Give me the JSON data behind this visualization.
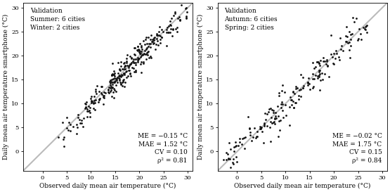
{
  "panel1": {
    "label": "Validation\nSummer: 6 cities\nWinter: 2 cities",
    "stats": "ME = −0.15 °C\nMAE = 1.52 °C\nCV = 0.10\nρ² = 0.81",
    "xlabel": "Observed daily mean air temperature (°C)",
    "ylabel": "Daily mean air temperature smartphone (°C)"
  },
  "panel2": {
    "label": "Validation\nAutumn: 6 cities\nSpring: 2 cities",
    "stats": "ME = −0.02 °C\nMAE = 1.75 °C\nCV = 0.15\nρ² = 0.84",
    "xlabel": "Observed daily mean air temperature (°C)",
    "ylabel": "Daily mean air temperature smartphone (°C)"
  },
  "xlim1": [
    -4,
    31
  ],
  "ylim1": [
    -4,
    31
  ],
  "xlim2": [
    -4,
    31
  ],
  "ylim2": [
    -4,
    31
  ],
  "xticks": [
    0,
    5,
    10,
    15,
    20,
    25,
    30
  ],
  "yticks": [
    0,
    5,
    10,
    15,
    20,
    25,
    30
  ],
  "dot_color": "#111111",
  "dot_size": 4,
  "line_color": "#bbbbbb",
  "line_width": 1.5,
  "background": "#ffffff",
  "font_size": 6.5,
  "axis_label_size": 6.5,
  "tick_label_size": 6.0
}
